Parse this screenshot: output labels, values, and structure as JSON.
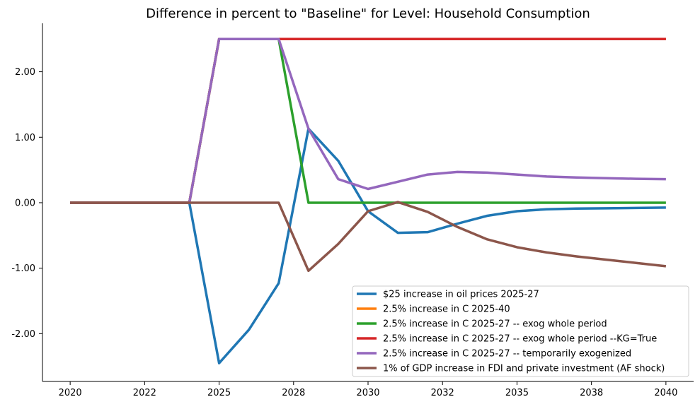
{
  "chart_data": {
    "type": "line",
    "title": "Difference in percent to \"Baseline\" for Level: Household Consumption",
    "xlabel": "",
    "ylabel": "",
    "x": [
      2020,
      2021,
      2022,
      2023,
      2024,
      2025,
      2026,
      2027,
      2028,
      2029,
      2030,
      2031,
      2032,
      2033,
      2034,
      2035,
      2036,
      2037,
      2038,
      2039,
      2040
    ],
    "xlim": [
      2019.07,
      2040.93
    ],
    "ylim": [
      -2.73,
      2.74
    ],
    "x_ticks": [
      {
        "value": 2020,
        "label": "2020"
      },
      {
        "value": 2022.5,
        "label": "2022"
      },
      {
        "value": 2025,
        "label": "2025"
      },
      {
        "value": 2027.5,
        "label": "2028"
      },
      {
        "value": 2030,
        "label": "2030"
      },
      {
        "value": 2032.5,
        "label": "2032"
      },
      {
        "value": 2035,
        "label": "2035"
      },
      {
        "value": 2037.5,
        "label": "2038"
      },
      {
        "value": 2040,
        "label": "2040"
      }
    ],
    "y_ticks": [
      {
        "value": 2,
        "label": "2.00"
      },
      {
        "value": 1,
        "label": "1.00"
      },
      {
        "value": 0,
        "label": "0.00"
      },
      {
        "value": -1,
        "label": "-1.00"
      },
      {
        "value": -2,
        "label": "-2.00"
      }
    ],
    "grid": false,
    "legend_position": "lower-right",
    "series": [
      {
        "name": "$25 increase in oil prices 2025-27",
        "color": "#1f77b4",
        "values": [
          0,
          0,
          0,
          0,
          0,
          -2.45,
          -1.94,
          -1.23,
          1.13,
          0.64,
          -0.13,
          -0.46,
          -0.45,
          -0.32,
          -0.2,
          -0.13,
          -0.1,
          -0.09,
          -0.085,
          -0.08,
          -0.075
        ]
      },
      {
        "name": "2.5% increase in C 2025-40",
        "color": "#ff7f0e",
        "values": [
          0,
          0,
          0,
          0,
          0,
          2.5,
          2.5,
          2.5,
          2.5,
          2.5,
          2.5,
          2.5,
          2.5,
          2.5,
          2.5,
          2.5,
          2.5,
          2.5,
          2.5,
          2.5,
          2.5
        ]
      },
      {
        "name": "2.5% increase in C 2025-27 -- exog whole period",
        "color": "#2ca02c",
        "values": [
          0,
          0,
          0,
          0,
          0,
          2.5,
          2.5,
          2.5,
          0,
          0,
          0,
          0,
          0,
          0,
          0,
          0,
          0,
          0,
          0,
          0,
          0
        ]
      },
      {
        "name": "2.5% increase in C 2025-27 -- exog whole period --KG=True",
        "color": "#d62728",
        "values": [
          0,
          0,
          0,
          0,
          0,
          2.5,
          2.5,
          2.5,
          2.5,
          2.5,
          2.5,
          2.5,
          2.5,
          2.5,
          2.5,
          2.5,
          2.5,
          2.5,
          2.5,
          2.5,
          2.5
        ]
      },
      {
        "name": "2.5% increase in C 2025-27 -- temporarily exogenized",
        "color": "#9467bd",
        "values": [
          0,
          0,
          0,
          0,
          0,
          2.5,
          2.5,
          2.5,
          1.13,
          0.36,
          0.21,
          0.32,
          0.43,
          0.47,
          0.46,
          0.43,
          0.4,
          0.385,
          0.375,
          0.365,
          0.36
        ]
      },
      {
        "name": "1% of GDP increase in FDI and private investment (AF shock)",
        "color": "#8c564b",
        "values": [
          0,
          0,
          0,
          0,
          0,
          0,
          0,
          0,
          -1.04,
          -0.63,
          -0.13,
          0.01,
          -0.14,
          -0.37,
          -0.56,
          -0.68,
          -0.76,
          -0.82,
          -0.87,
          -0.92,
          -0.97
        ]
      }
    ]
  }
}
